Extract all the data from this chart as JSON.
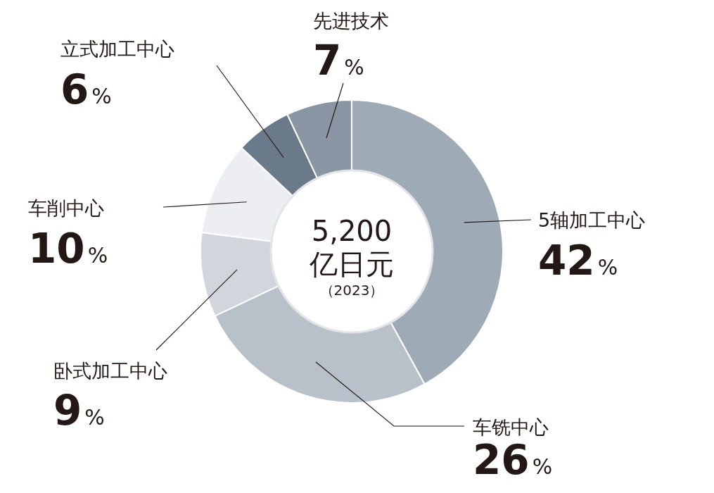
{
  "chart_data": {
    "type": "donut",
    "title": "5,200",
    "subtitle": "亿日元",
    "annotations": [
      "（2023）"
    ],
    "categories": [
      "5轴加工中心",
      "车铣中心",
      "卧式加工中心",
      "车削中心",
      "立式加工中心",
      "先进技术"
    ],
    "values": [
      42,
      26,
      9,
      10,
      6,
      7
    ],
    "value_labels": [
      "42%",
      "26%",
      "9%",
      "10%",
      "6%",
      "7%"
    ],
    "colors": [
      "#9eaab5",
      "#b8c1ca",
      "#d0d6dc",
      "#eceef1",
      "#6a7a8a",
      "#8a96a3"
    ]
  }
}
